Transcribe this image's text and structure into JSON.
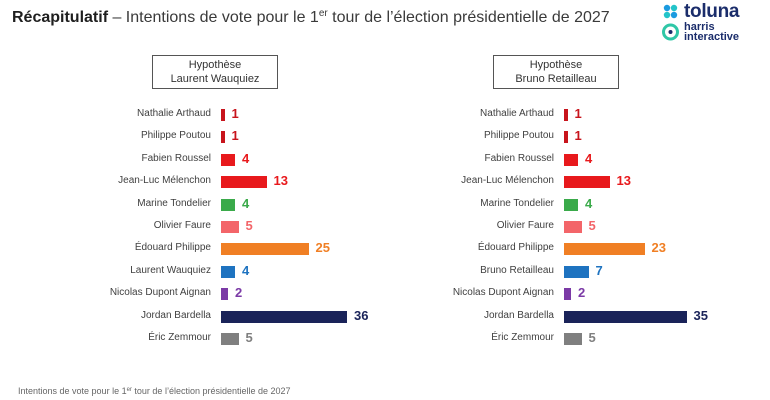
{
  "header": {
    "title_bold": "Récapitulatif",
    "title_pre": " – Intentions de vote pour le 1",
    "title_sup": "er",
    "title_post": " tour de l’élection présidentielle de 2027"
  },
  "logo": {
    "line1": "toluna",
    "line2a": "harris",
    "line2b": "interactive"
  },
  "footnote": {
    "pre": "Intentions de vote pour le 1",
    "sup": "er",
    "post": " tour de l’élection présidentielle de 2027"
  },
  "colors": {
    "far_left": "#e8191c",
    "left": "#e8191c",
    "ecology": "#3aaa4a",
    "socialist": "#f36569",
    "center_right": "#f07f24",
    "right": "#1e73c0",
    "sovereignist": "#7b3aa6",
    "far_right": "#1a2359",
    "far_right_2": "#7f7f7f"
  },
  "chart_data": [
    {
      "type": "bar",
      "title_line1": "Hypothèse",
      "title_line2": "Laurent Wauquiez",
      "categories": [
        "Nathalie Arthaud",
        "Philippe Poutou",
        "Fabien Roussel",
        "Jean-Luc Mélenchon",
        "Marine Tondelier",
        "Olivier Faure",
        "Édouard Philippe",
        "Laurent Wauquiez",
        "Nicolas Dupont Aignan",
        "Jordan Bardella",
        "Éric Zemmour"
      ],
      "values": [
        1,
        1,
        4,
        13,
        4,
        5,
        25,
        4,
        2,
        36,
        5
      ],
      "colors": [
        "#c8141c",
        "#c8141c",
        "#e8191c",
        "#e8191c",
        "#3aaa4a",
        "#f36569",
        "#f07f24",
        "#1e73c0",
        "#7b3aa6",
        "#1a2359",
        "#7f7f7f"
      ],
      "label_colors": [
        "#c8141c",
        "#c8141c",
        "#e8191c",
        "#e8191c",
        "#3aaa4a",
        "#f36569",
        "#f07f24",
        "#1e73c0",
        "#7b3aa6",
        "#1a2359",
        "#7f7f7f"
      ]
    },
    {
      "type": "bar",
      "title_line1": "Hypothèse",
      "title_line2": "Bruno Retailleau",
      "categories": [
        "Nathalie Arthaud",
        "Philippe Poutou",
        "Fabien Roussel",
        "Jean-Luc Mélenchon",
        "Marine Tondelier",
        "Olivier Faure",
        "Édouard Philippe",
        "Bruno Retailleau",
        "Nicolas Dupont Aignan",
        "Jordan Bardella",
        "Éric Zemmour"
      ],
      "values": [
        1,
        1,
        4,
        13,
        4,
        5,
        23,
        7,
        2,
        35,
        5
      ],
      "colors": [
        "#c8141c",
        "#c8141c",
        "#e8191c",
        "#e8191c",
        "#3aaa4a",
        "#f36569",
        "#f07f24",
        "#1e73c0",
        "#7b3aa6",
        "#1a2359",
        "#7f7f7f"
      ],
      "label_colors": [
        "#c8141c",
        "#c8141c",
        "#e8191c",
        "#e8191c",
        "#3aaa4a",
        "#f36569",
        "#f07f24",
        "#1e73c0",
        "#7b3aa6",
        "#1a2359",
        "#7f7f7f"
      ]
    }
  ]
}
